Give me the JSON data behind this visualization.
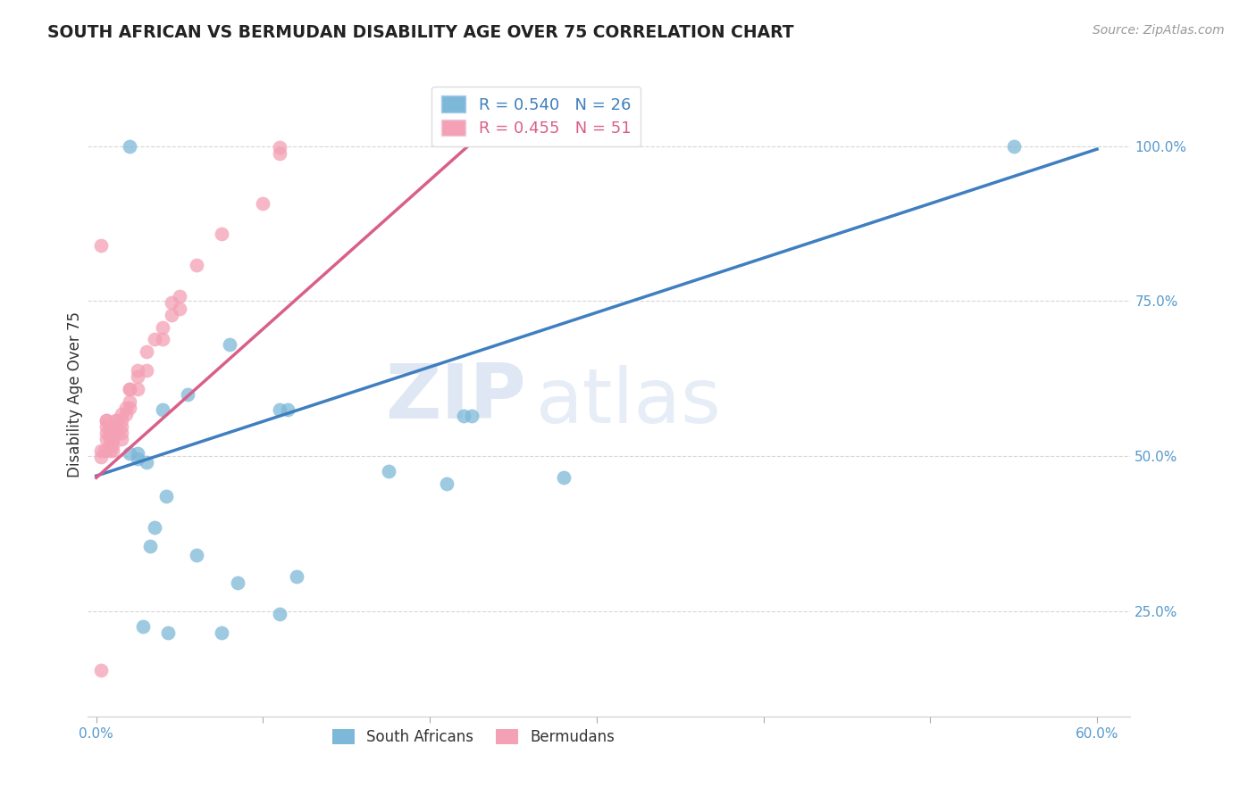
{
  "title": "SOUTH AFRICAN VS BERMUDAN DISABILITY AGE OVER 75 CORRELATION CHART",
  "source": "Source: ZipAtlas.com",
  "ylabel": "Disability Age Over 75",
  "xlabel_ticks": [
    "0.0%",
    "",
    "",
    "",
    "",
    "",
    "60.0%"
  ],
  "xlabel_vals": [
    0.0,
    0.1,
    0.2,
    0.3,
    0.4,
    0.5,
    0.6
  ],
  "ylabel_ticks": [
    "25.0%",
    "50.0%",
    "75.0%",
    "100.0%"
  ],
  "ylabel_vals": [
    0.25,
    0.5,
    0.75,
    1.0
  ],
  "xlim": [
    -0.005,
    0.62
  ],
  "ylim": [
    0.08,
    1.12
  ],
  "blue_R": 0.54,
  "blue_N": 26,
  "pink_R": 0.455,
  "pink_N": 51,
  "legend_label_blue": "South Africans",
  "legend_label_pink": "Bermudans",
  "blue_color": "#7db8d8",
  "pink_color": "#f4a0b5",
  "blue_line_color": "#3f7fbf",
  "pink_line_color": "#d95f8a",
  "watermark_zip": "ZIP",
  "watermark_atlas": "atlas",
  "blue_scatter_x": [
    0.02,
    0.08,
    0.22,
    0.225,
    0.025,
    0.025,
    0.03,
    0.04,
    0.055,
    0.11,
    0.115,
    0.035,
    0.032,
    0.042,
    0.06,
    0.085,
    0.12,
    0.175,
    0.21,
    0.28,
    0.028,
    0.043,
    0.075,
    0.11,
    0.55,
    0.02
  ],
  "blue_scatter_y": [
    1.0,
    0.68,
    0.565,
    0.565,
    0.505,
    0.495,
    0.49,
    0.575,
    0.6,
    0.575,
    0.575,
    0.385,
    0.355,
    0.435,
    0.34,
    0.295,
    0.305,
    0.475,
    0.455,
    0.465,
    0.225,
    0.215,
    0.215,
    0.245,
    1.0,
    0.505
  ],
  "pink_scatter_x": [
    0.003,
    0.003,
    0.003,
    0.005,
    0.006,
    0.006,
    0.006,
    0.006,
    0.006,
    0.008,
    0.008,
    0.008,
    0.008,
    0.008,
    0.01,
    0.01,
    0.01,
    0.01,
    0.012,
    0.012,
    0.012,
    0.012,
    0.015,
    0.015,
    0.015,
    0.015,
    0.015,
    0.018,
    0.018,
    0.02,
    0.02,
    0.02,
    0.02,
    0.025,
    0.025,
    0.025,
    0.03,
    0.03,
    0.035,
    0.04,
    0.04,
    0.045,
    0.045,
    0.05,
    0.05,
    0.06,
    0.075,
    0.1,
    0.11,
    0.11,
    0.003
  ],
  "pink_scatter_y": [
    0.84,
    0.508,
    0.498,
    0.508,
    0.558,
    0.558,
    0.548,
    0.538,
    0.528,
    0.548,
    0.538,
    0.528,
    0.518,
    0.508,
    0.528,
    0.528,
    0.518,
    0.508,
    0.558,
    0.558,
    0.548,
    0.538,
    0.568,
    0.558,
    0.548,
    0.538,
    0.528,
    0.578,
    0.568,
    0.608,
    0.608,
    0.588,
    0.578,
    0.638,
    0.628,
    0.608,
    0.668,
    0.638,
    0.688,
    0.708,
    0.688,
    0.748,
    0.728,
    0.758,
    0.738,
    0.808,
    0.858,
    0.908,
    0.998,
    0.988,
    0.155
  ],
  "blue_trend_x": [
    0.0,
    0.6
  ],
  "blue_trend_y": [
    0.468,
    0.995
  ],
  "pink_trend_x": [
    0.0,
    0.225
  ],
  "pink_trend_y": [
    0.465,
    1.005
  ]
}
